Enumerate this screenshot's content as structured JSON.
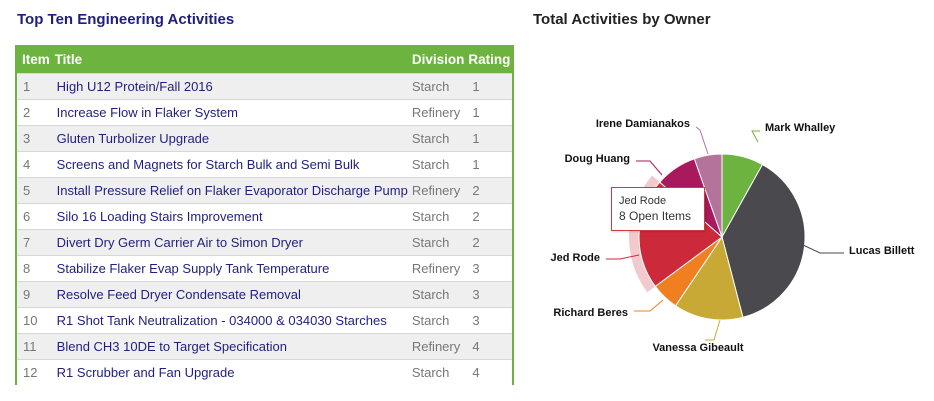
{
  "left_title": "Top Ten Engineering Activities",
  "right_title": "Total Activities by Owner",
  "table": {
    "headers": {
      "item": "Item",
      "title": "Title",
      "division": "Division",
      "rating": "Rating"
    },
    "rows": [
      {
        "item": "1",
        "title": "High U12 Protein/Fall 2016",
        "division": "Starch",
        "rating": "1"
      },
      {
        "item": "2",
        "title": "Increase Flow in Flaker System",
        "division": "Refinery",
        "rating": "1"
      },
      {
        "item": "3",
        "title": "Gluten Turbolizer Upgrade",
        "division": "Starch",
        "rating": "1"
      },
      {
        "item": "4",
        "title": "Screens and Magnets for Starch Bulk and Semi Bulk",
        "division": "Starch",
        "rating": "1"
      },
      {
        "item": "5",
        "title": "Install Pressure Relief on Flaker Evaporator Discharge Pump",
        "division": "Refinery",
        "rating": "2"
      },
      {
        "item": "6",
        "title": "Silo 16 Loading Stairs Improvement",
        "division": "Starch",
        "rating": "2"
      },
      {
        "item": "7",
        "title": "Divert Dry Germ Carrier Air to Simon Dryer",
        "division": "Starch",
        "rating": "2"
      },
      {
        "item": "8",
        "title": "Stabilize Flaker Evap Supply Tank Temperature",
        "division": "Refinery",
        "rating": "3"
      },
      {
        "item": "9",
        "title": "Resolve Feed Dryer Condensate Removal",
        "division": "Starch",
        "rating": "3"
      },
      {
        "item": "10",
        "title": "R1 Shot Tank Neutralization - 034000 & 034030 Starches",
        "division": "Starch",
        "rating": "3"
      },
      {
        "item": "11",
        "title": "Blend CH3 10DE to Target Specification",
        "division": "Refinery",
        "rating": "4"
      },
      {
        "item": "12",
        "title": "R1 Scrubber and Fan Upgrade",
        "division": "Starch",
        "rating": "4"
      }
    ]
  },
  "tooltip": {
    "name": "Jed Rode",
    "value": "8 Open Items"
  },
  "chart_data": {
    "type": "pie",
    "title": "Total Activities by Owner",
    "slices": [
      {
        "label": "Mark Whalley",
        "value": 3,
        "color": "#6cb33f"
      },
      {
        "label": "Lucas Billett",
        "value": 14,
        "color": "#4a4a4e"
      },
      {
        "label": "Vanessa Gibeault",
        "value": 5,
        "color": "#c8a935"
      },
      {
        "label": "Richard Beres",
        "value": 2,
        "color": "#f07f22"
      },
      {
        "label": "Jed Rode",
        "value": 8,
        "color": "#cc2a3a"
      },
      {
        "label": "Doug Huang",
        "value": 3,
        "color": "#a8195e"
      },
      {
        "label": "Irene Damianakos",
        "value": 2,
        "color": "#b3739b"
      }
    ],
    "highlighted": "Jed Rode"
  }
}
